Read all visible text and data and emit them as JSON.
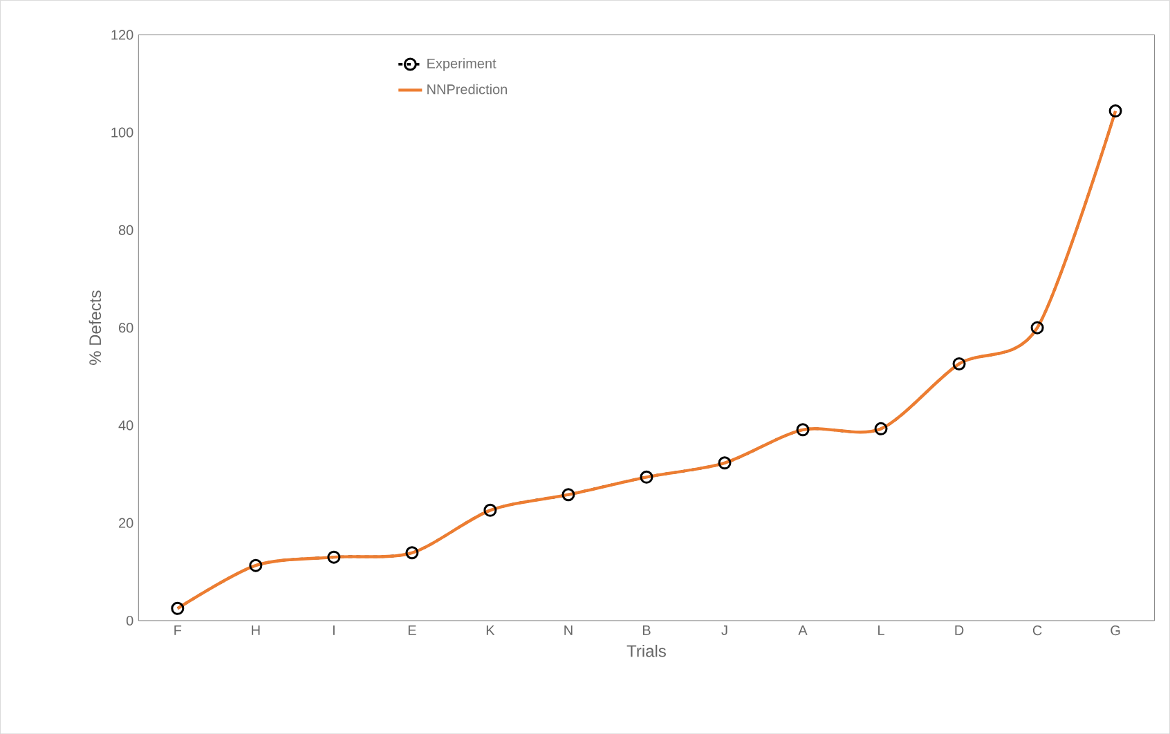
{
  "chart_data": {
    "type": "line",
    "xlabel": "Trials",
    "ylabel": "% Defects",
    "categories": [
      "F",
      "H",
      "I",
      "E",
      "K",
      "N",
      "B",
      "J",
      "A",
      "L",
      "D",
      "C",
      "G"
    ],
    "series": [
      {
        "name": "Experiment",
        "color": "#000000",
        "line_style": "dashed",
        "marker": "circle",
        "values": [
          2.5,
          11.3,
          13.0,
          13.9,
          22.6,
          25.8,
          29.4,
          32.3,
          39.1,
          39.3,
          52.6,
          60.0,
          104.4
        ]
      },
      {
        "name": "NNPrediction",
        "color": "#ed7d31",
        "line_style": "solid",
        "marker": "none",
        "values": [
          2.5,
          11.3,
          13.0,
          13.9,
          22.6,
          25.8,
          29.4,
          32.3,
          39.1,
          39.3,
          52.6,
          60.0,
          104.4
        ]
      }
    ],
    "ylim": [
      0,
      120
    ],
    "yticks": [
      0,
      20,
      40,
      60,
      80,
      100,
      120
    ],
    "grid": false,
    "legend": "top"
  }
}
